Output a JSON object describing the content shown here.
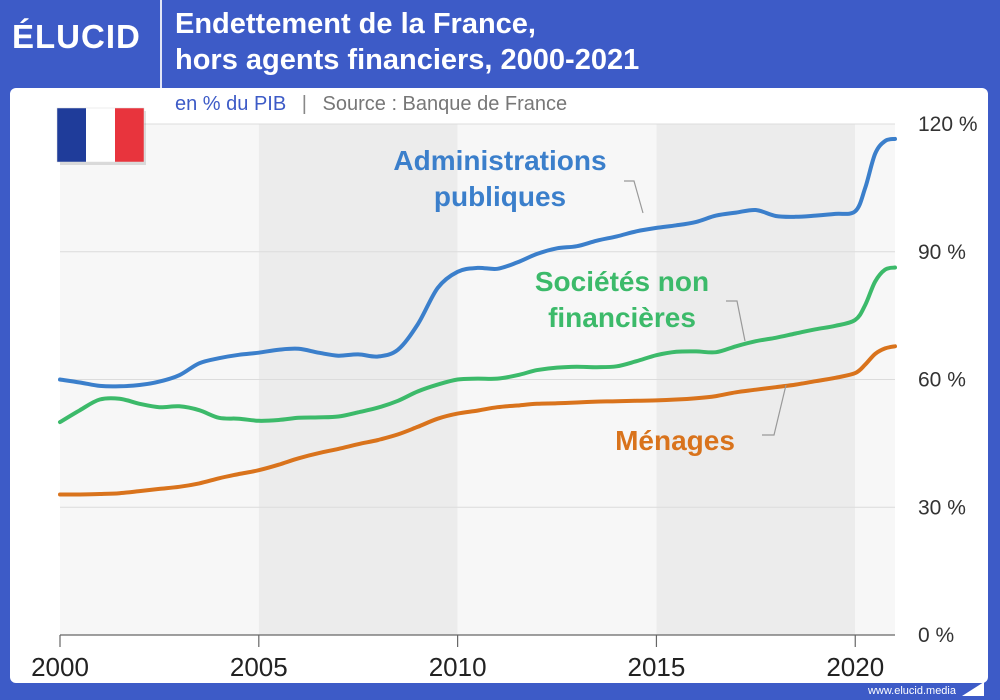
{
  "brand": {
    "logo": "ÉLUCID",
    "site": "www.elucid.media"
  },
  "colors": {
    "header_bg": "#3d5bc7",
    "admin": "#3b7fcb",
    "societes": "#3cba6a",
    "menages": "#d9731c",
    "subtitle_unit": "#3d5bc7",
    "subtitle_source": "#777777"
  },
  "icons": {
    "flag": "france-flag-icon",
    "footer": "triangle-mark-icon"
  },
  "chart_data": {
    "type": "line",
    "title": "Endettement de la France,\nhors agents financiers, 2000-2021",
    "subtitle_unit": "en % du PIB",
    "subtitle_separator": "|",
    "subtitle_source": "Source : Banque de France",
    "xlabel": "",
    "ylabel": "",
    "xlim": [
      2000,
      2021
    ],
    "ylim": [
      0,
      120
    ],
    "x_ticks": [
      2000,
      2005,
      2010,
      2015,
      2020
    ],
    "x_tick_labels": [
      "2000",
      "2005",
      "2010",
      "2015",
      "2020"
    ],
    "y_ticks": [
      0,
      30,
      60,
      90,
      120
    ],
    "y_tick_labels": [
      "0 %",
      "30 %",
      "60 %",
      "90 %",
      "120 %"
    ],
    "grid": true,
    "series": [
      {
        "name": "Administrations publiques",
        "label_lines": [
          "Administrations",
          "publiques"
        ],
        "color_key": "admin",
        "x": [
          2000,
          2000.5,
          2001,
          2001.5,
          2002,
          2002.5,
          2003,
          2003.5,
          2004,
          2004.5,
          2005,
          2005.5,
          2006,
          2006.5,
          2007,
          2007.5,
          2008,
          2008.5,
          2009,
          2009.5,
          2010,
          2010.5,
          2011,
          2011.5,
          2012,
          2012.5,
          2013,
          2013.5,
          2014,
          2014.5,
          2015,
          2015.5,
          2016,
          2016.5,
          2017,
          2017.5,
          2018,
          2018.5,
          2019,
          2019.5,
          2020,
          2020.25,
          2020.5,
          2020.75,
          2021
        ],
        "y": [
          60,
          59.3,
          58.5,
          58.4,
          58.7,
          59.5,
          61,
          63.8,
          65,
          65.8,
          66.3,
          67,
          67.2,
          66.3,
          65.6,
          65.9,
          65.4,
          67,
          73,
          81.5,
          85.3,
          86.2,
          86,
          87.5,
          89.5,
          90.8,
          91.3,
          92.6,
          93.6,
          94.8,
          95.6,
          96.2,
          97,
          98.5,
          99.2,
          99.8,
          98.4,
          98.2,
          98.5,
          98.9,
          99.5,
          105,
          113,
          116,
          116.5
        ]
      },
      {
        "name": "Sociétés non financières",
        "label_lines": [
          "Sociétés non",
          "financières"
        ],
        "color_key": "societes",
        "x": [
          2000,
          2000.5,
          2001,
          2001.5,
          2002,
          2002.5,
          2003,
          2003.5,
          2004,
          2004.5,
          2005,
          2005.5,
          2006,
          2006.5,
          2007,
          2007.5,
          2008,
          2008.5,
          2009,
          2009.5,
          2010,
          2010.5,
          2011,
          2011.5,
          2012,
          2012.5,
          2013,
          2013.5,
          2014,
          2014.5,
          2015,
          2015.5,
          2016,
          2016.5,
          2017,
          2017.5,
          2018,
          2018.5,
          2019,
          2019.5,
          2020,
          2020.25,
          2020.5,
          2020.75,
          2021
        ],
        "y": [
          50,
          52.8,
          55.3,
          55.5,
          54.3,
          53.5,
          53.7,
          52.8,
          51,
          50.8,
          50.3,
          50.5,
          51,
          51.1,
          51.3,
          52.3,
          53.4,
          55,
          57.2,
          58.8,
          60,
          60.2,
          60.2,
          61,
          62.2,
          62.8,
          63,
          62.9,
          63.1,
          64.3,
          65.7,
          66.5,
          66.6,
          66.4,
          67.8,
          69,
          69.8,
          70.8,
          71.8,
          72.6,
          74,
          77.5,
          83,
          85.8,
          86.3
        ]
      },
      {
        "name": "Ménages",
        "label_lines": [
          "Ménages"
        ],
        "color_key": "menages",
        "x": [
          2000,
          2000.5,
          2001,
          2001.5,
          2002,
          2002.5,
          2003,
          2003.5,
          2004,
          2004.5,
          2005,
          2005.5,
          2006,
          2006.5,
          2007,
          2007.5,
          2008,
          2008.5,
          2009,
          2009.5,
          2010,
          2010.5,
          2011,
          2011.5,
          2012,
          2012.5,
          2013,
          2013.5,
          2014,
          2014.5,
          2015,
          2015.5,
          2016,
          2016.5,
          2017,
          2017.5,
          2018,
          2018.5,
          2019,
          2019.5,
          2020,
          2020.25,
          2020.5,
          2020.75,
          2021
        ],
        "y": [
          33,
          33,
          33.1,
          33.3,
          33.8,
          34.3,
          34.8,
          35.6,
          36.8,
          37.8,
          38.7,
          40,
          41.5,
          42.7,
          43.7,
          44.8,
          45.8,
          47.1,
          48.9,
          50.8,
          52,
          52.7,
          53.5,
          53.9,
          54.3,
          54.4,
          54.6,
          54.8,
          54.9,
          55,
          55.1,
          55.3,
          55.6,
          56.1,
          57,
          57.6,
          58.2,
          58.8,
          59.6,
          60.4,
          61.5,
          63.5,
          66,
          67.3,
          67.8
        ]
      }
    ]
  }
}
